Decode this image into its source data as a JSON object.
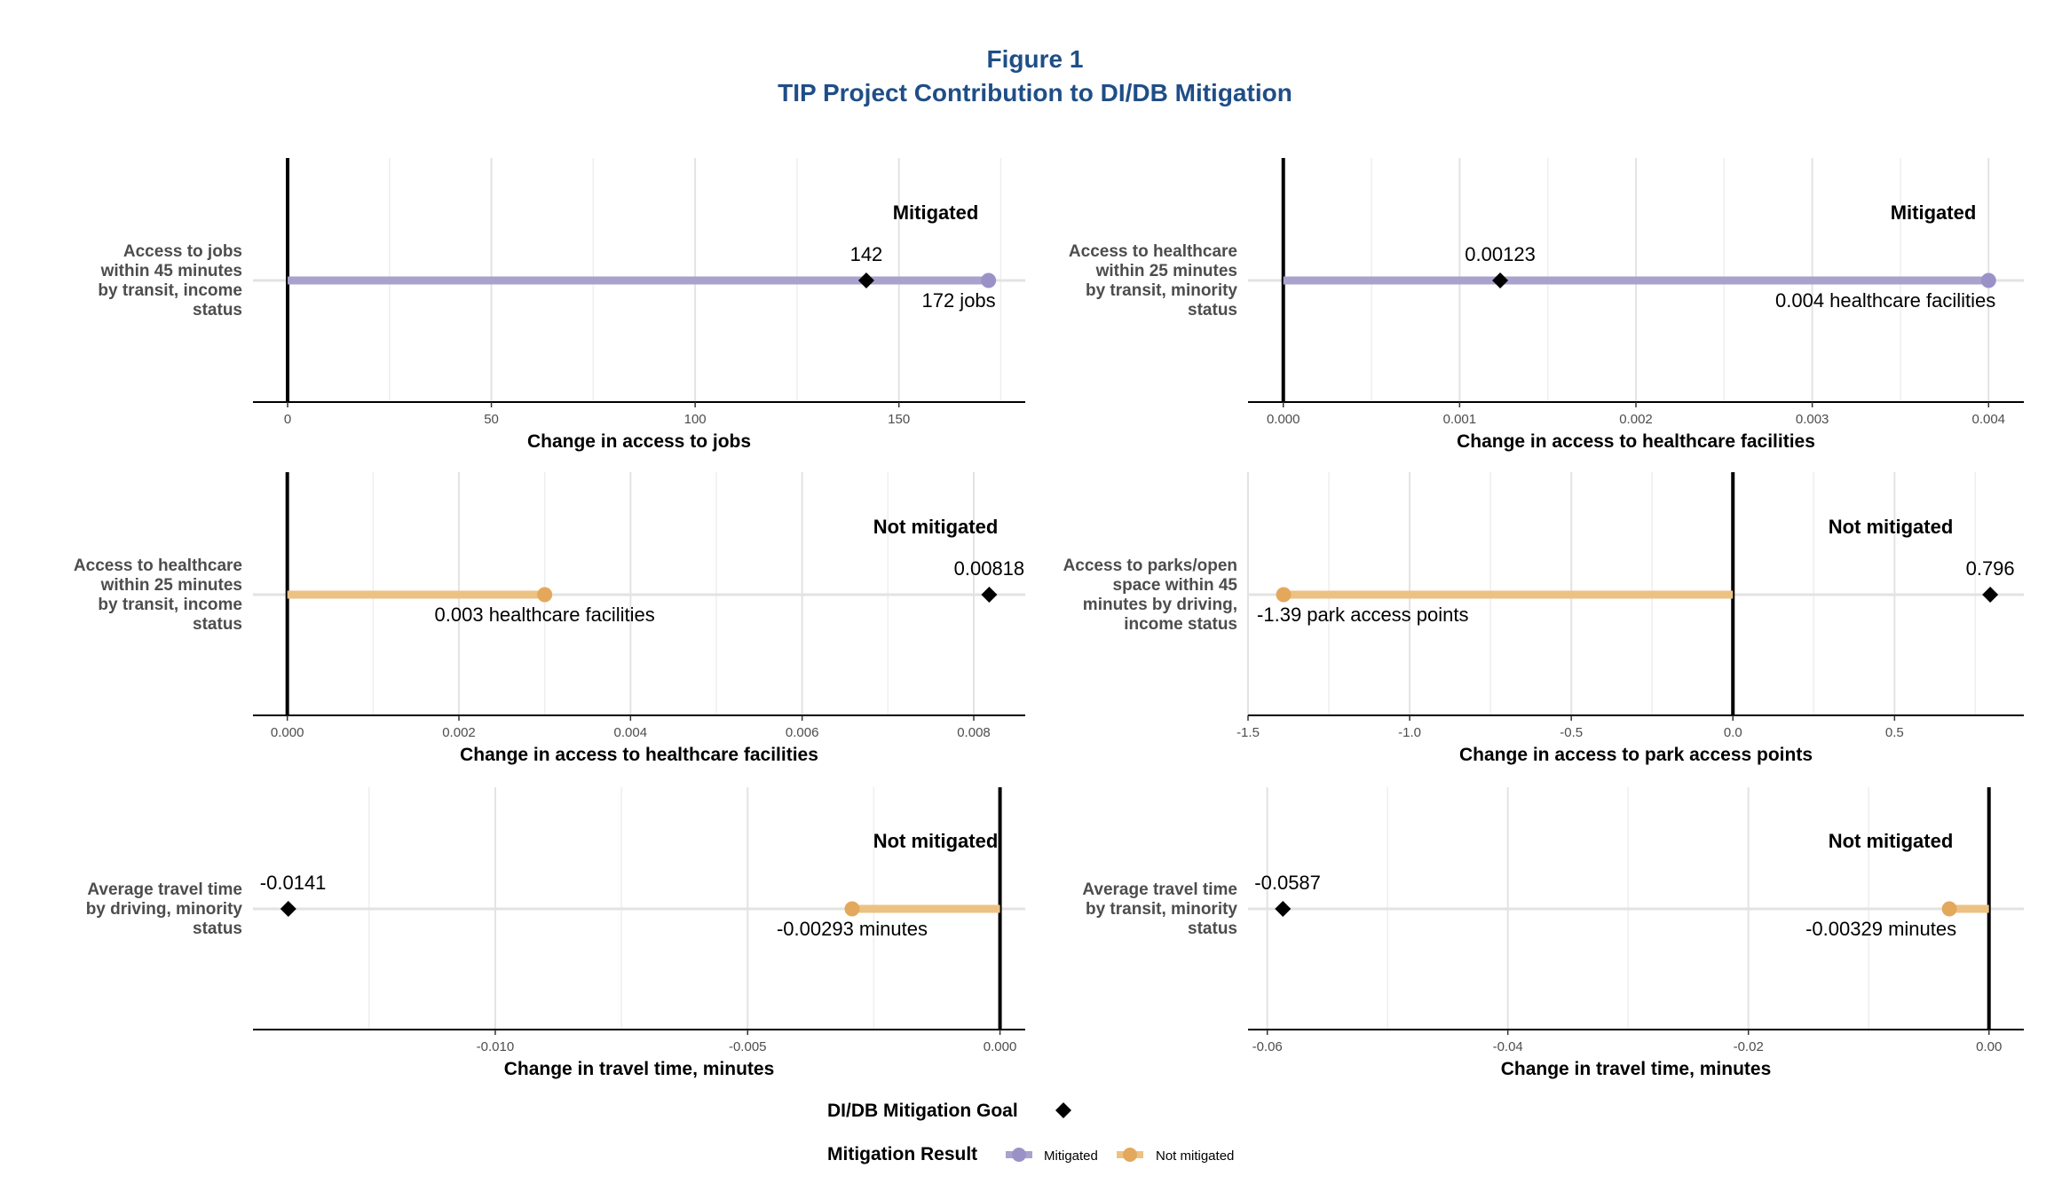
{
  "title": {
    "line1": "Figure 1",
    "line2": "TIP Project Contribution to DI/DB Mitigation"
  },
  "colors": {
    "mitigated": "#a9a2cc",
    "mitigated_point": "#9a92c6",
    "not_mitigated": "#ecc283",
    "not_mitigated_point": "#e3a85c",
    "goal": "#000000",
    "grid": "#e3e3e3",
    "title": "#1f4e87"
  },
  "legend": {
    "goal_title": "DI/DB Mitigation Goal",
    "result_title": "Mitigation Result",
    "mitigated_label": "Mitigated",
    "not_mitigated_label": "Not mitigated"
  },
  "chart_data": [
    {
      "type": "lollipop",
      "row_label": [
        "Access to jobs",
        "within 45 minutes",
        "by transit, income",
        "status"
      ],
      "status": "Mitigated",
      "result": 172,
      "result_label": "172 jobs",
      "goal": 142,
      "goal_label": "142",
      "xlabel": "Change in access to jobs",
      "xlim": [
        -8.5,
        181
      ],
      "ticks": [
        0,
        50,
        100,
        150
      ],
      "tick_labels": [
        "0",
        "50",
        "100",
        "150"
      ]
    },
    {
      "type": "lollipop",
      "row_label": [
        "Access to healthcare",
        "within 25 minutes",
        "by transit, minority",
        "status"
      ],
      "status": "Mitigated",
      "result": 0.004,
      "result_label": "0.004 healthcare facilities",
      "goal": 0.00123,
      "goal_label": "0.00123",
      "xlabel": "Change in access to healthcare facilities",
      "xlim": [
        -0.0002,
        0.0042
      ],
      "ticks": [
        0,
        0.001,
        0.002,
        0.003,
        0.004
      ],
      "tick_labels": [
        "0.000",
        "0.001",
        "0.002",
        "0.003",
        "0.004"
      ]
    },
    {
      "type": "lollipop",
      "row_label": [
        "Access to healthcare",
        "within 25 minutes",
        "by transit, income",
        "status"
      ],
      "status": "Not mitigated",
      "result": 0.003,
      "result_label": "0.003 healthcare facilities",
      "goal": 0.00818,
      "goal_label": "0.00818",
      "xlabel": "Change in access to healthcare facilities",
      "xlim": [
        -0.0004,
        0.0086
      ],
      "ticks": [
        0,
        0.002,
        0.004,
        0.006,
        0.008
      ],
      "tick_labels": [
        "0.000",
        "0.002",
        "0.004",
        "0.006",
        "0.008"
      ]
    },
    {
      "type": "lollipop",
      "row_label": [
        "Access to parks/open",
        "space within 45",
        "minutes by driving,",
        "income status"
      ],
      "status": "Not mitigated",
      "result": -1.39,
      "result_label": "-1.39 park access points",
      "goal": 0.796,
      "goal_label": "0.796",
      "xlabel": "Change in access to park access points",
      "xlim": [
        -1.5,
        0.9
      ],
      "ticks": [
        -1.5,
        -1.0,
        -0.5,
        0.0,
        0.5
      ],
      "tick_labels": [
        "-1.5",
        "-1.0",
        "-0.5",
        "0.0",
        "0.5"
      ]
    },
    {
      "type": "lollipop",
      "row_label": [
        "Average travel time",
        "by driving, minority",
        "status"
      ],
      "status": "Not mitigated",
      "result": -0.00293,
      "result_label": "-0.00293 minutes",
      "goal": -0.0141,
      "goal_label": "-0.0141",
      "xlabel": "Change in travel time,  minutes",
      "xlim": [
        -0.0148,
        0.0005
      ],
      "ticks": [
        -0.01,
        -0.005,
        0.0
      ],
      "tick_labels": [
        "-0.010",
        "-0.005",
        "0.000"
      ]
    },
    {
      "type": "lollipop",
      "row_label": [
        "Average travel time",
        "by transit, minority",
        "status"
      ],
      "status": "Not mitigated",
      "result": -0.00329,
      "result_label": "-0.00329 minutes",
      "goal": -0.0587,
      "goal_label": "-0.0587",
      "xlabel": "Change in travel time,  minutes",
      "xlim": [
        -0.0616,
        0.0029
      ],
      "ticks": [
        -0.06,
        -0.04,
        -0.02,
        0.0
      ],
      "tick_labels": [
        "-0.06",
        "-0.04",
        "-0.02",
        "0.00"
      ]
    }
  ]
}
